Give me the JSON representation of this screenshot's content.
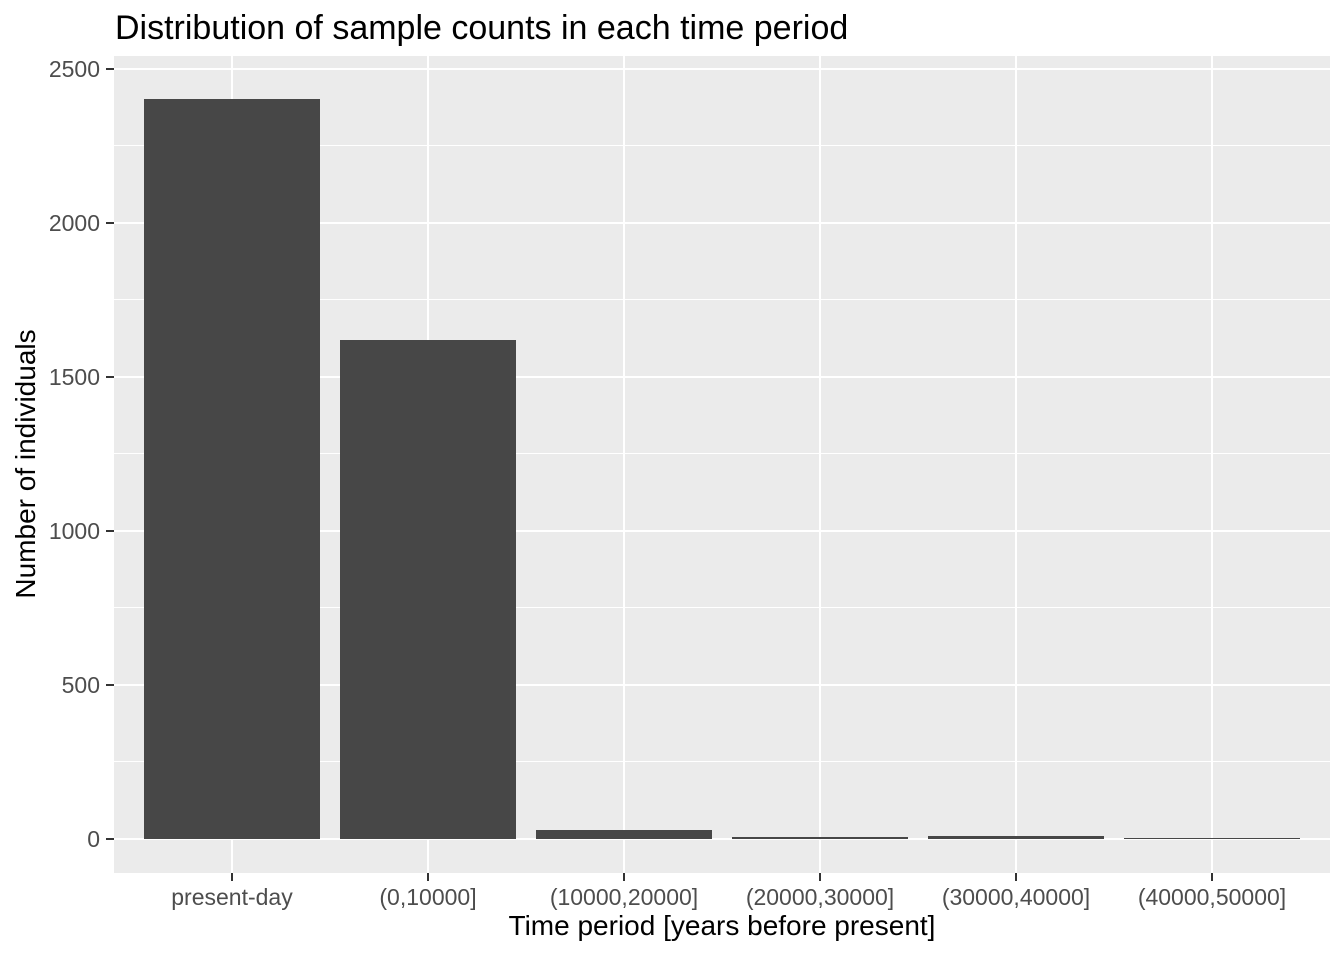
{
  "chart_data": {
    "type": "bar",
    "title": "Distribution of sample counts in each time period",
    "xlabel": "Time period [years before present]",
    "ylabel": "Number of individuals",
    "categories": [
      "present-day",
      "(0,10000]",
      "(10000,20000]",
      "(20000,30000]",
      "(30000,40000]",
      "(40000,50000]"
    ],
    "values": [
      2400,
      1620,
      30,
      5,
      9,
      2
    ],
    "y_major_ticks": [
      0,
      500,
      1000,
      1500,
      2000,
      2500
    ],
    "y_minor_ticks": [
      250,
      750,
      1250,
      1750,
      2250
    ],
    "y_tick_labels": [
      "0",
      "500",
      "1000",
      "1500",
      "2000",
      "2500"
    ],
    "ylim": [
      -113,
      2545
    ],
    "grid": "white major and minor horizontal lines, white vertical lines at category centers",
    "legend": "none",
    "style": "ggplot2 grey theme"
  },
  "colors": {
    "bar_fill": "#474747",
    "panel_background": "#EBEBEB",
    "gridline": "#FFFFFF",
    "tick_label_text": "#4D4D4D",
    "tick_mark": "#333333",
    "title_text": "#000000",
    "page_background": "#FFFFFF"
  }
}
